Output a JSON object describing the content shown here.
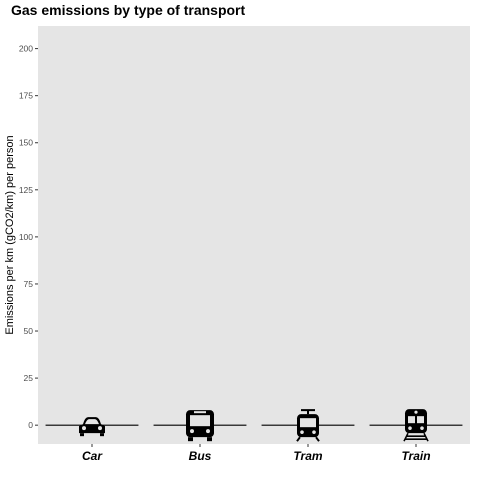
{
  "chart_data": {
    "type": "bar",
    "title": "Gas emissions by type of transport",
    "xlabel": "",
    "ylabel": "Emissions per km (gCO2/km) per person",
    "categories": [
      "Car",
      "Bus",
      "Tram",
      "Train"
    ],
    "values": [
      0,
      0,
      0,
      0
    ],
    "icons": [
      "car-icon",
      "bus-icon",
      "tram-icon",
      "train-icon"
    ],
    "ylim": [
      -10,
      212
    ],
    "yticks": [
      "0",
      "25",
      "50",
      "75",
      "100",
      "125",
      "150",
      "175",
      "200"
    ],
    "grid": false,
    "legend": "none",
    "colors": {
      "panel": "#e5e5e5",
      "mark": "#000000",
      "tick_text": "#4d4d4d"
    }
  }
}
